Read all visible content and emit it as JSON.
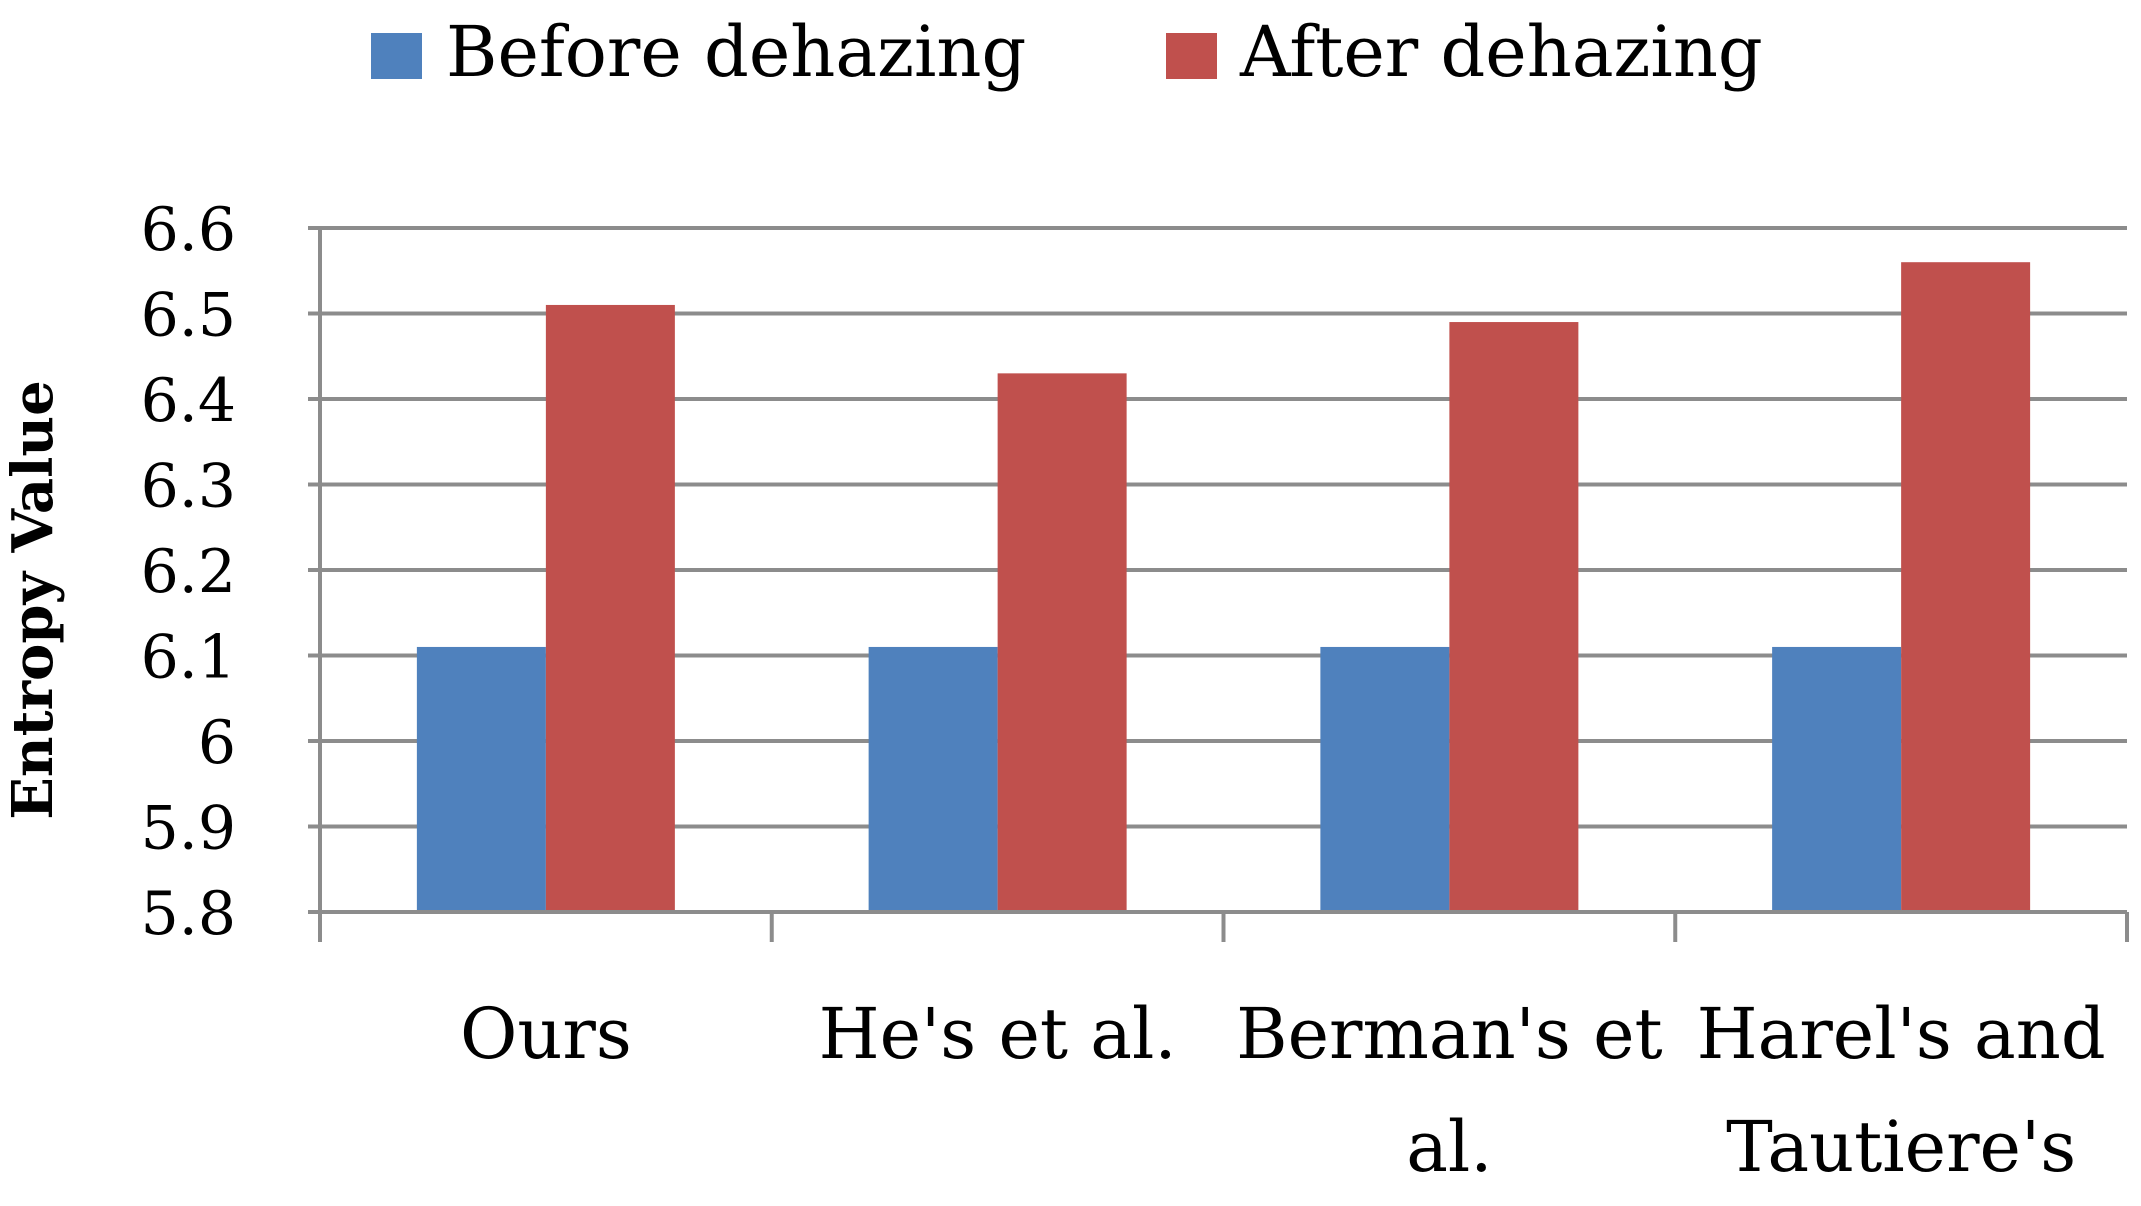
{
  "chart_data": {
    "type": "bar",
    "title": "",
    "xlabel": "",
    "ylabel": "Entropy Value",
    "ylim": [
      5.8,
      6.6
    ],
    "yticks": [
      5.8,
      5.9,
      6,
      6.1,
      6.2,
      6.3,
      6.4,
      6.5,
      6.6
    ],
    "ytick_labels": [
      "5.8",
      "5.9",
      "6",
      "6.1",
      "6.2",
      "6.3",
      "6.4",
      "6.5",
      "6.6"
    ],
    "grid": true,
    "legend_position": "top",
    "categories": [
      [
        "Ours"
      ],
      [
        "He's et al."
      ],
      [
        "Berman's et",
        "al."
      ],
      [
        "Harel's and",
        "Tautiere's"
      ]
    ],
    "series": [
      {
        "name": "Before dehazing",
        "color": "#4F81BD",
        "values": [
          6.11,
          6.11,
          6.11,
          6.11
        ]
      },
      {
        "name": "After dehazing",
        "color": "#C0504D",
        "values": [
          6.51,
          6.43,
          6.49,
          6.56
        ]
      }
    ]
  }
}
